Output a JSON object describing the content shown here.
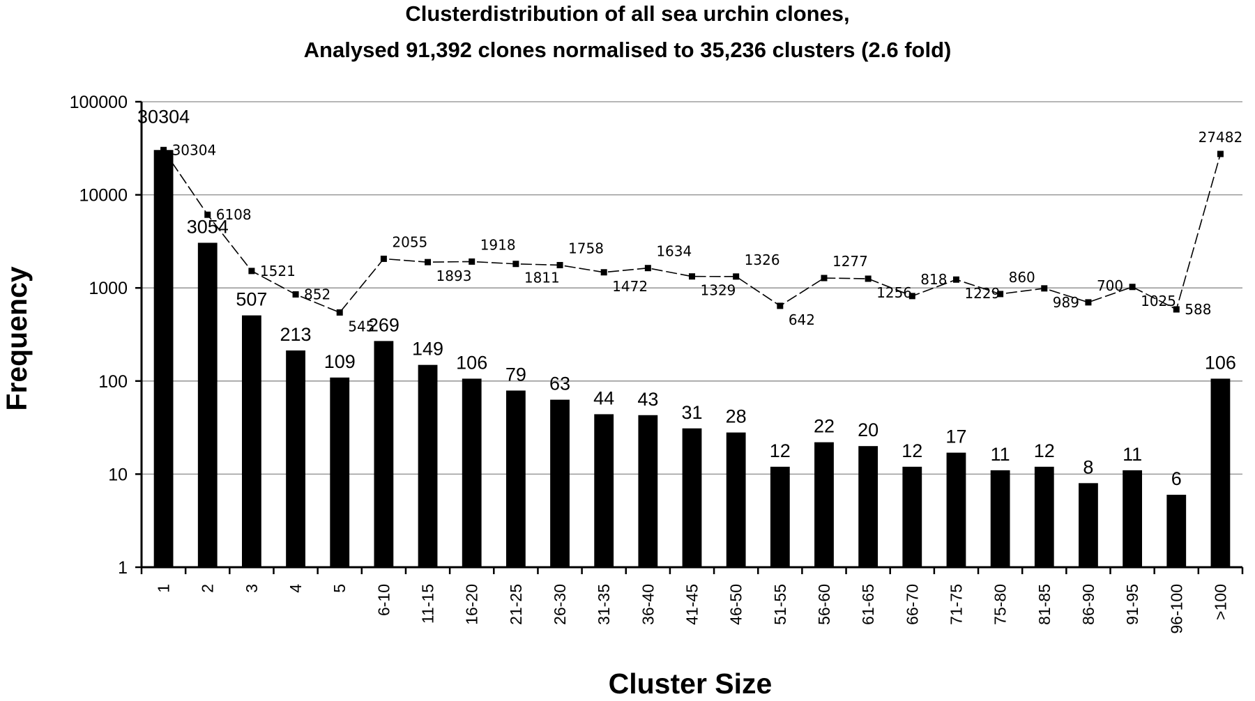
{
  "chart_data": {
    "type": "bar",
    "title": "Clusterdistribution of all sea urchin clones,",
    "subtitle": "Analysed 91,392 clones normalised to 35,236 clusters (2.6 fold)",
    "xlabel": "Cluster Size",
    "ylabel": "Frequency",
    "yscale": "log",
    "ylim": [
      1,
      100000
    ],
    "yticks": [
      "1",
      "10",
      "100",
      "1000",
      "10000",
      "100000"
    ],
    "grid": true,
    "categories": [
      "1",
      "2",
      "3",
      "4",
      "5",
      "6-10",
      "11-15",
      "16-20",
      "21-25",
      "26-30",
      "31-35",
      "36-40",
      "41-45",
      "46-50",
      "51-55",
      "56-60",
      "61-65",
      "66-70",
      "71-75",
      "75-80",
      "81-85",
      "86-90",
      "91-95",
      "96-100",
      ">100"
    ],
    "series": [
      {
        "type": "bar",
        "color": "#000000",
        "values": [
          30304,
          3054,
          507,
          213,
          109,
          269,
          149,
          106,
          79,
          63,
          44,
          43,
          31,
          28,
          12,
          22,
          20,
          12,
          17,
          11,
          12,
          8,
          11,
          6,
          106
        ]
      },
      {
        "type": "line",
        "style": "dashed",
        "color": "#000000",
        "values": [
          30304,
          6108,
          1521,
          852,
          545,
          2055,
          1893,
          1918,
          1811,
          1758,
          1472,
          1634,
          1329,
          1326,
          642,
          1277,
          1256,
          818,
          1229,
          860,
          989,
          700,
          1025,
          588,
          27482
        ]
      }
    ]
  }
}
